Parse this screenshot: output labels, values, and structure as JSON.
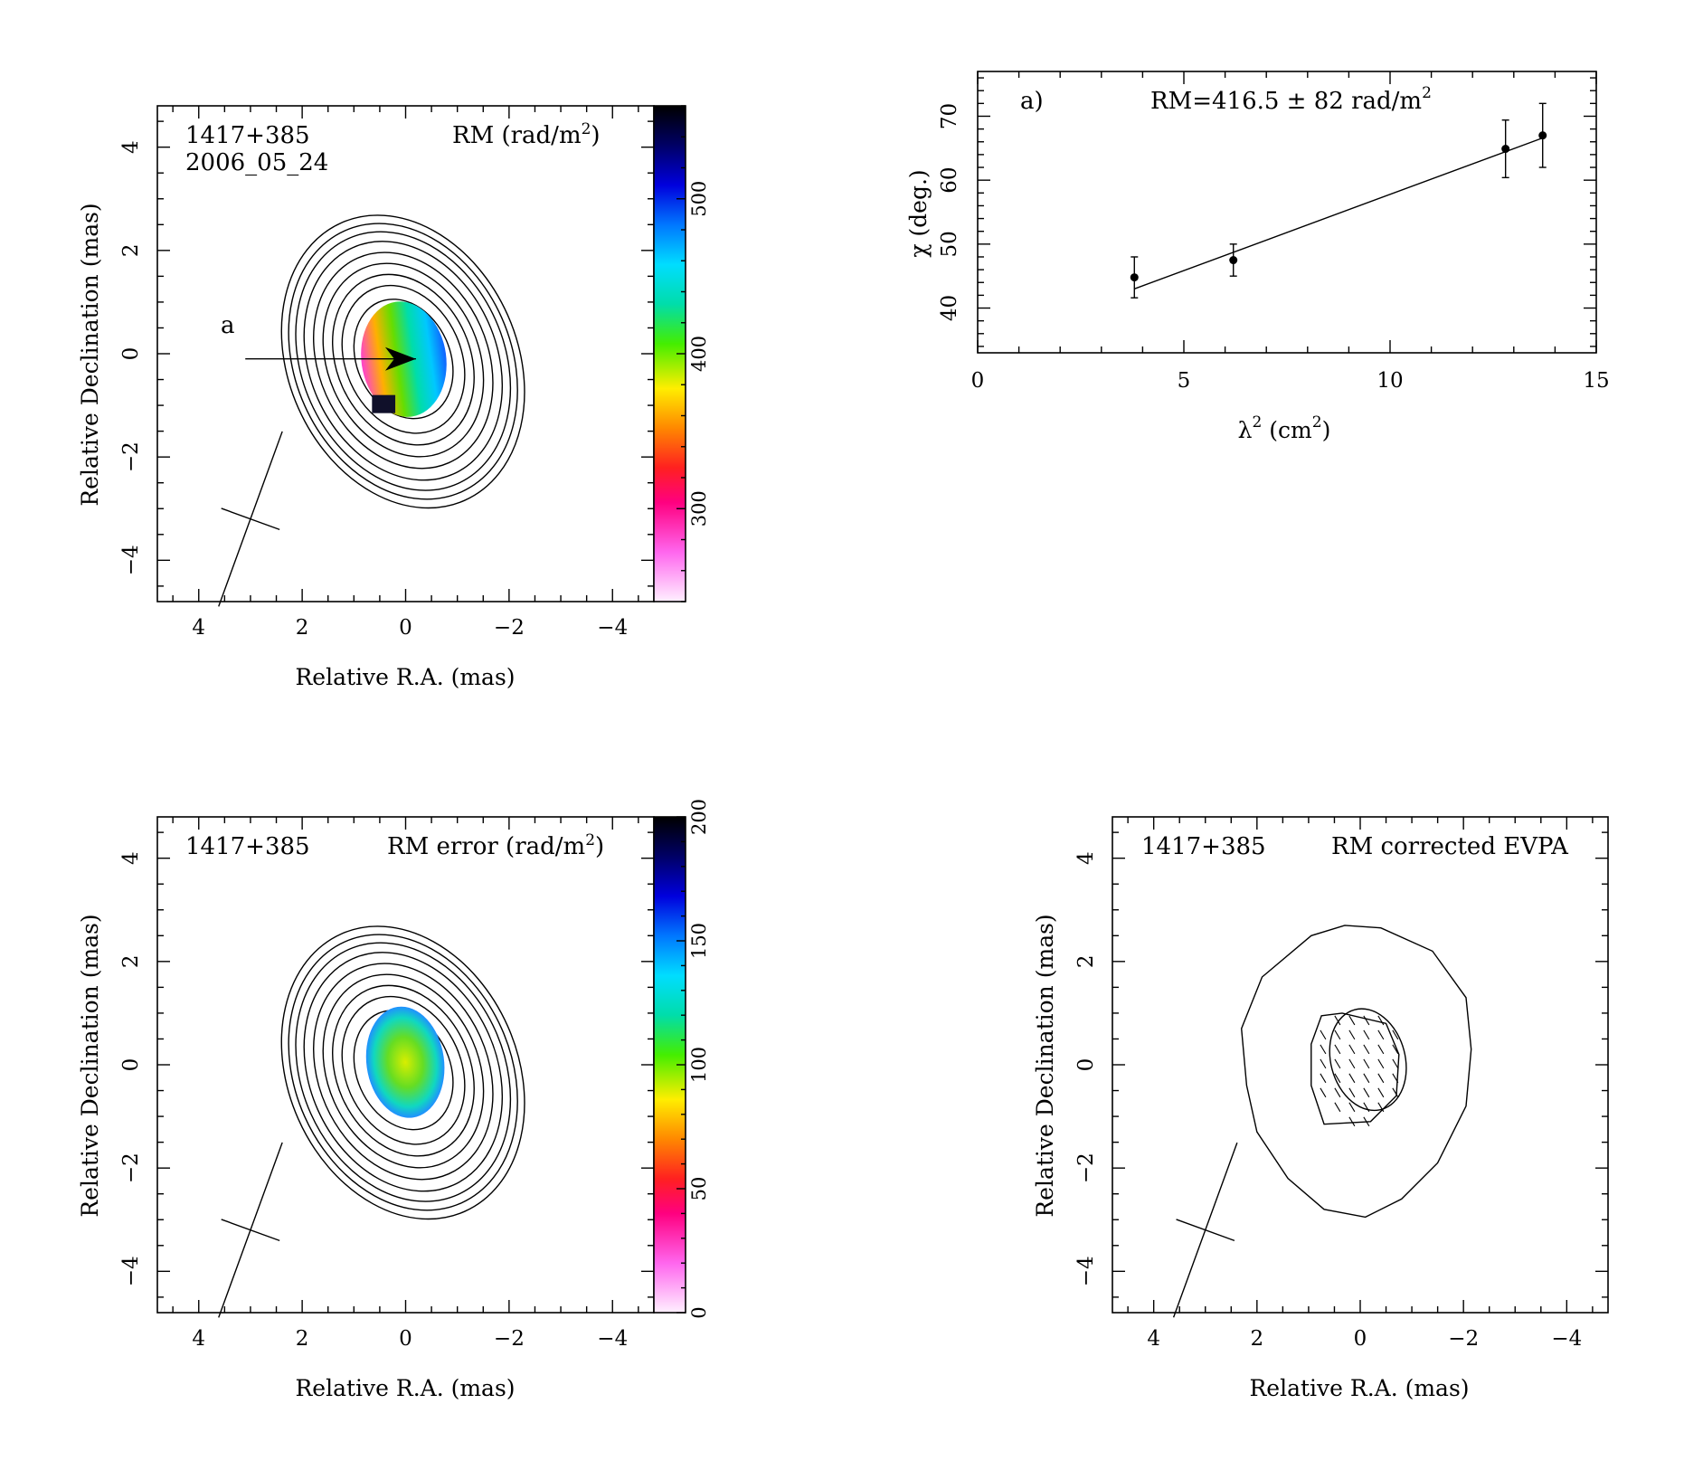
{
  "chart_data": [
    {
      "type": "heatmap",
      "id": "rm-map",
      "source_label": "1417+385",
      "epoch_label": "2006_05_24",
      "map_label": "RM (rad/m",
      "map_label_sup": "2",
      "map_label_end": ")",
      "xlabel": "Relative R.A. (mas)",
      "ylabel": "Relative Declination (mas)",
      "xlim": [
        4.8,
        -4.8
      ],
      "ylim": [
        -4.8,
        4.8
      ],
      "xticks": [
        4,
        2,
        0,
        -2,
        -4
      ],
      "yticks": [
        -4,
        -2,
        0,
        2,
        4
      ],
      "colorbar": {
        "range": [
          240,
          560
        ],
        "ticks": [
          300,
          400,
          500
        ],
        "colormap": "rainbow: white-magenta-red-yellow-green-cyan-blue-black"
      },
      "pointer_label": "a",
      "beam": {
        "major": 3.6,
        "minor": 1.2,
        "pa_deg": -20
      }
    },
    {
      "type": "scatter",
      "id": "rm-fit",
      "panel_label": "a)",
      "fit_label": "RM=416.5 ± 82 rad/m",
      "fit_label_sup": "2",
      "xlabel_main": "λ",
      "xlabel_sup": "2",
      "xlabel_end": " (cm",
      "xlabel_sup2": "2",
      "xlabel_close": ")",
      "ylabel": "χ (deg.)",
      "xlim": [
        0,
        15
      ],
      "ylim": [
        33,
        77
      ],
      "xticks": [
        0,
        5,
        10,
        15
      ],
      "yticks": [
        40,
        50,
        60,
        70
      ],
      "points": [
        {
          "x": 3.8,
          "y": 44.8,
          "err": 3.2
        },
        {
          "x": 6.2,
          "y": 47.5,
          "err": 2.5
        },
        {
          "x": 12.8,
          "y": 64.9,
          "err": 4.5
        },
        {
          "x": 13.7,
          "y": 67.0,
          "err": 5.0
        }
      ],
      "fit_line": [
        {
          "x": 3.8,
          "y": 43.0
        },
        {
          "x": 13.7,
          "y": 66.6
        }
      ]
    },
    {
      "type": "heatmap",
      "id": "rm-error-map",
      "source_label": "1417+385",
      "map_label": "RM error (rad/m",
      "map_label_sup": "2",
      "map_label_end": ")",
      "xlabel": "Relative R.A. (mas)",
      "ylabel": "Relative Declination (mas)",
      "xlim": [
        4.8,
        -4.8
      ],
      "ylim": [
        -4.8,
        4.8
      ],
      "xticks": [
        4,
        2,
        0,
        -2,
        -4
      ],
      "yticks": [
        -4,
        -2,
        0,
        2,
        4
      ],
      "colorbar": {
        "range": [
          0,
          200
        ],
        "ticks": [
          0,
          50,
          100,
          150,
          200
        ],
        "colormap": "rainbow: white-magenta-red-yellow-green-cyan-blue-black"
      },
      "beam": {
        "major": 3.6,
        "minor": 1.2,
        "pa_deg": -20
      }
    },
    {
      "type": "scatter",
      "id": "evpa-map",
      "source_label": "1417+385",
      "map_label": "RM corrected EVPA",
      "xlabel": "Relative R.A. (mas)",
      "ylabel": "Relative Declination (mas)",
      "xlim": [
        4.8,
        -4.8
      ],
      "ylim": [
        -4.8,
        4.8
      ],
      "xticks": [
        4,
        2,
        0,
        -2,
        -4
      ],
      "yticks": [
        -4,
        -2,
        0,
        2,
        4
      ],
      "beam": {
        "major": 3.6,
        "minor": 1.2,
        "pa_deg": -20
      }
    }
  ]
}
